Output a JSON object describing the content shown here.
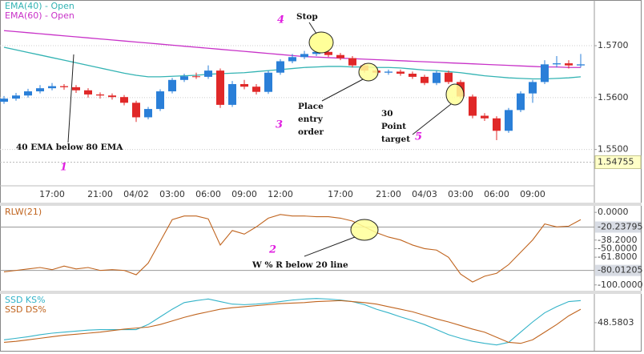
{
  "chart_data": [
    {
      "type": "candlestick",
      "categories": [
        null,
        null,
        null,
        null,
        "17:00",
        null,
        null,
        null,
        "21:00",
        null,
        null,
        "04/02",
        null,
        null,
        "03:00",
        null,
        null,
        "06:00",
        null,
        null,
        "09:00",
        null,
        null,
        "12:00",
        null,
        null,
        null,
        null,
        "17:00",
        null,
        null,
        null,
        "21:00",
        null,
        null,
        "04/03",
        null,
        null,
        "03:00",
        null,
        null,
        "06:00",
        null,
        null,
        "09:00",
        null,
        null,
        null,
        null
      ],
      "open": [
        1.5592,
        1.5598,
        1.5604,
        1.5612,
        1.5618,
        1.5622,
        1.562,
        1.5614,
        1.5606,
        1.5604,
        1.5601,
        1.559,
        1.5562,
        1.5578,
        1.5612,
        1.5634,
        1.5641,
        1.564,
        1.5652,
        1.5586,
        1.5626,
        1.5621,
        1.5611,
        1.5648,
        1.567,
        1.5678,
        1.5684,
        1.5688,
        1.5682,
        1.5676,
        1.5662,
        1.5652,
        1.5648,
        1.565,
        1.5646,
        1.564,
        1.5628,
        1.5648,
        1.563,
        1.5602,
        1.5565,
        1.556,
        1.5536,
        1.5576,
        1.5608,
        1.563,
        1.5664,
        1.5666,
        1.5662
      ],
      "high": [
        1.5603,
        1.5609,
        1.5617,
        1.5624,
        1.5628,
        1.5626,
        1.5624,
        1.5618,
        1.561,
        1.5608,
        1.5605,
        1.5594,
        1.5582,
        1.5616,
        1.5638,
        1.5646,
        1.5648,
        1.5662,
        1.5656,
        1.5632,
        1.5634,
        1.5626,
        1.5652,
        1.5674,
        1.5684,
        1.569,
        1.5694,
        1.5692,
        1.5686,
        1.568,
        1.5666,
        1.5656,
        1.5654,
        1.5654,
        1.565,
        1.5644,
        1.5652,
        1.5652,
        1.5634,
        1.5606,
        1.557,
        1.5564,
        1.558,
        1.5612,
        1.5634,
        1.5672,
        1.568,
        1.5672,
        1.5684
      ],
      "low": [
        1.5588,
        1.5594,
        1.56,
        1.5608,
        1.5614,
        1.5615,
        1.5609,
        1.56,
        1.5598,
        1.5596,
        1.5585,
        1.5553,
        1.5558,
        1.5574,
        1.5608,
        1.563,
        1.5636,
        1.5636,
        1.558,
        1.5582,
        1.5616,
        1.5606,
        1.5607,
        1.5644,
        1.5666,
        1.5674,
        1.568,
        1.5678,
        1.5672,
        1.5658,
        1.5648,
        1.5644,
        1.5644,
        1.5642,
        1.5636,
        1.5624,
        1.5624,
        1.5626,
        1.5598,
        1.556,
        1.5555,
        1.5518,
        1.5532,
        1.5572,
        1.559,
        1.5626,
        1.5658,
        1.5656,
        1.5658
      ],
      "close": [
        1.5598,
        1.5604,
        1.5612,
        1.5618,
        1.5622,
        1.562,
        1.5614,
        1.5606,
        1.5604,
        1.5601,
        1.559,
        1.5562,
        1.5578,
        1.5612,
        1.5634,
        1.5641,
        1.564,
        1.5652,
        1.5586,
        1.5626,
        1.5621,
        1.5611,
        1.5648,
        1.567,
        1.5678,
        1.5684,
        1.5688,
        1.5682,
        1.5676,
        1.5662,
        1.5652,
        1.5648,
        1.565,
        1.5646,
        1.564,
        1.5628,
        1.5648,
        1.563,
        1.5602,
        1.5565,
        1.556,
        1.5536,
        1.5576,
        1.5608,
        1.563,
        1.5664,
        1.5666,
        1.5662,
        1.5664
      ],
      "up_color": "#2a7fd8",
      "down_color": "#e02828",
      "series": [
        {
          "name": "EMA(40) - Open",
          "color": "#33b3b3",
          "values": [
            1.5697,
            1.5692,
            1.5687,
            1.5682,
            1.5677,
            1.5672,
            1.5667,
            1.5662,
            1.5657,
            1.5652,
            1.5647,
            1.5643,
            1.564,
            1.564,
            1.5641,
            1.5642,
            1.5643,
            1.5645,
            1.5646,
            1.5647,
            1.5648,
            1.565,
            1.5652,
            1.5654,
            1.5656,
            1.5658,
            1.5659,
            1.566,
            1.566,
            1.5659,
            1.5659,
            1.5658,
            1.5658,
            1.5657,
            1.5655,
            1.5653,
            1.5652,
            1.565,
            1.5648,
            1.5645,
            1.5642,
            1.564,
            1.5638,
            1.5637,
            1.5636,
            1.5636,
            1.5637,
            1.5638,
            1.564
          ]
        },
        {
          "name": "EMA(60) - Open",
          "color": "#c832c8",
          "values": [
            1.5729,
            1.5727,
            1.5725,
            1.5723,
            1.5721,
            1.5719,
            1.5717,
            1.5715,
            1.5713,
            1.5711,
            1.5709,
            1.5707,
            1.5705,
            1.5703,
            1.5701,
            1.5699,
            1.5697,
            1.5695,
            1.5693,
            1.5691,
            1.5689,
            1.5687,
            1.5685,
            1.5683,
            1.5681,
            1.5679,
            1.5678,
            1.5677,
            1.5676,
            1.5675,
            1.5674,
            1.5673,
            1.5672,
            1.5671,
            1.567,
            1.5669,
            1.5668,
            1.5667,
            1.5666,
            1.5665,
            1.5664,
            1.5663,
            1.5662,
            1.5661,
            1.566,
            1.5659,
            1.5659,
            1.5658,
            1.5658
          ]
        }
      ],
      "ylim": [
        1.543,
        1.5788
      ],
      "yticks": [
        {
          "value": 1.55,
          "label": "1.5500"
        },
        {
          "value": 1.56,
          "label": "1.5600"
        },
        {
          "value": 1.57,
          "label": "1.5700"
        }
      ],
      "last_price": 1.54755,
      "grid": true
    },
    {
      "type": "line",
      "series": [
        {
          "name": "RLW(21)",
          "color": "#c0641e",
          "values": [
            -82,
            -80,
            -78,
            -76,
            -79,
            -74,
            -78,
            -76,
            -80,
            -79,
            -80,
            -86,
            -70,
            -40,
            -10,
            -5,
            -5,
            -9,
            -45,
            -25,
            -30,
            -20,
            -8,
            -3,
            -5,
            -5,
            -6,
            -6,
            -8,
            -12,
            -20,
            -28,
            -34,
            -38,
            -45,
            -50,
            -52,
            -62,
            -85,
            -96,
            -88,
            -84,
            -72,
            -55,
            -38,
            -16,
            -20,
            -19,
            -10
          ]
        }
      ],
      "ylim": [
        -108,
        9
      ],
      "yticks": [
        {
          "value": 0,
          "label": "0.0000"
        },
        {
          "value": -38.2,
          "label": "-38.2000"
        },
        {
          "value": -50,
          "label": "-50.0000"
        },
        {
          "value": -61.8,
          "label": "-61.8000"
        },
        {
          "value": -100,
          "label": "-100.0000"
        }
      ],
      "levels": [
        -20.23795,
        -80.01205
      ]
    },
    {
      "type": "line",
      "series": [
        {
          "name": "SSD KS%",
          "color": "#33b3c8",
          "values": [
            15,
            18,
            21,
            25,
            28,
            30,
            32,
            34,
            35,
            35,
            35,
            35,
            45,
            60,
            75,
            88,
            92,
            95,
            90,
            85,
            84,
            85,
            87,
            90,
            93,
            95,
            96,
            95,
            93,
            90,
            84,
            75,
            68,
            60,
            53,
            45,
            35,
            25,
            18,
            12,
            8,
            5,
            10,
            30,
            50,
            68,
            80,
            90,
            92
          ]
        },
        {
          "name": "SSD DS%",
          "color": "#c0641e",
          "values": [
            10,
            12,
            15,
            18,
            21,
            24,
            26,
            28,
            30,
            33,
            36,
            38,
            40,
            45,
            52,
            59,
            65,
            70,
            75,
            78,
            80,
            82,
            84,
            86,
            87,
            88,
            90,
            91,
            92,
            90,
            88,
            85,
            80,
            75,
            70,
            63,
            56,
            50,
            43,
            36,
            30,
            20,
            10,
            8,
            15,
            30,
            45,
            62,
            75
          ]
        }
      ],
      "ylim": [
        -5,
        105
      ],
      "yticks": [
        48.5803
      ]
    }
  ],
  "annotations": {
    "stop": "Stop",
    "entry": [
      "Place",
      "entry",
      "order"
    ],
    "target": [
      "30",
      "Point",
      "target"
    ],
    "ema_note": "40 EMA below 80 EMA",
    "wr_note": "W % R below 20 line",
    "n1": "1",
    "n2": "2",
    "n3": "3",
    "n4": "4",
    "n5": "5"
  }
}
